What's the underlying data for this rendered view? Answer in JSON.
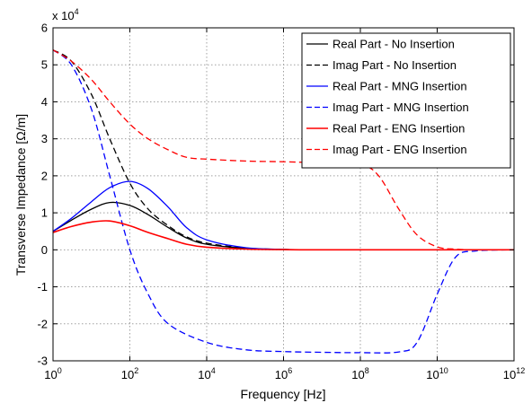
{
  "chart_data": {
    "type": "line",
    "xlabel": "Frequency [Hz]",
    "ylabel": "Transverse Impedance [Ω/m]",
    "x_scale": "log",
    "xlim": [
      1,
      1000000000000
    ],
    "ylim": [
      -30000,
      60000
    ],
    "y_multiplier_label": {
      "base": "x 10",
      "exp": "4"
    },
    "grid": true,
    "legend_position": "top-right",
    "x_ticks": [
      {
        "value": 1,
        "base": "10",
        "exp": "0"
      },
      {
        "value": 100,
        "base": "10",
        "exp": "2"
      },
      {
        "value": 10000,
        "base": "10",
        "exp": "4"
      },
      {
        "value": 1000000,
        "base": "10",
        "exp": "6"
      },
      {
        "value": 100000000,
        "base": "10",
        "exp": "8"
      },
      {
        "value": 10000000000,
        "base": "10",
        "exp": "10"
      },
      {
        "value": 1000000000000,
        "base": "10",
        "exp": "12"
      }
    ],
    "y_ticks": [
      {
        "value": 60000,
        "label": "6"
      },
      {
        "value": 50000,
        "label": "5"
      },
      {
        "value": 40000,
        "label": "4"
      },
      {
        "value": 30000,
        "label": "3"
      },
      {
        "value": 20000,
        "label": "2"
      },
      {
        "value": 10000,
        "label": "1"
      },
      {
        "value": 0,
        "label": "0"
      },
      {
        "value": -10000,
        "label": "-1"
      },
      {
        "value": -20000,
        "label": "-2"
      },
      {
        "value": -30000,
        "label": "-3"
      }
    ],
    "series": [
      {
        "name": "Real Part - No Insertion",
        "color": "#000000",
        "dash": "solid",
        "width": 1.3,
        "x": [
          1,
          3,
          10,
          30,
          100,
          300,
          1000,
          3000,
          10000,
          100000,
          1000000,
          10000000,
          1000000000000
        ],
        "y": [
          5000,
          8000,
          11000,
          12800,
          12000,
          9500,
          6000,
          3200,
          1500,
          400,
          100,
          0,
          0
        ]
      },
      {
        "name": "Imag Part - No Insertion",
        "color": "#000000",
        "dash": "dashed",
        "width": 1.3,
        "x": [
          1,
          3,
          10,
          30,
          100,
          300,
          1000,
          3000,
          10000,
          100000,
          1000000,
          10000000,
          1000000000000
        ],
        "y": [
          54000,
          51000,
          42000,
          30000,
          18000,
          11000,
          6500,
          3500,
          1800,
          500,
          100,
          0,
          0
        ]
      },
      {
        "name": "Real Part - MNG Insertion",
        "color": "#0000ff",
        "dash": "solid",
        "width": 1.3,
        "x": [
          1,
          3,
          10,
          30,
          100,
          300,
          1000,
          3000,
          10000,
          100000,
          1000000,
          10000000
        ],
        "y": [
          5000,
          8500,
          13000,
          16800,
          18500,
          16500,
          11500,
          6000,
          2700,
          600,
          100,
          0
        ]
      },
      {
        "name": "Imag Part - MNG Insertion",
        "color": "#0000ff",
        "dash": "dashed",
        "width": 1.3,
        "x": [
          1,
          3,
          10,
          30,
          100,
          300,
          1000,
          10000,
          100000,
          1000000,
          10000000,
          100000000,
          1000000000,
          3000000000,
          10000000000,
          30000000000,
          100000000000,
          1000000000000
        ],
        "y": [
          54000,
          50000,
          38000,
          20000,
          0,
          -12000,
          -20000,
          -25000,
          -27000,
          -27500,
          -27700,
          -27800,
          -27600,
          -25000,
          -12000,
          -2000,
          -300,
          0
        ]
      },
      {
        "name": "Real Part - ENG Insertion",
        "color": "#ff0000",
        "dash": "solid",
        "width": 1.6,
        "x": [
          1,
          3,
          10,
          30,
          100,
          300,
          1000,
          3000,
          10000,
          100000,
          1000000,
          10000000,
          1000000000000
        ],
        "y": [
          4700,
          6300,
          7500,
          7800,
          6500,
          4700,
          3000,
          1500,
          700,
          200,
          50,
          0,
          0
        ]
      },
      {
        "name": "Imag Part - ENG Insertion",
        "color": "#ff0000",
        "dash": "dashed",
        "width": 1.3,
        "x": [
          1,
          3,
          10,
          30,
          100,
          300,
          1000,
          3000,
          10000,
          100000,
          1000000,
          10000000,
          100000000,
          300000000,
          1000000000,
          3000000000,
          10000000000,
          30000000000,
          100000000000,
          1000000000000
        ],
        "y": [
          54000,
          51000,
          46000,
          40000,
          34000,
          30000,
          27000,
          25000,
          24500,
          24000,
          23800,
          23500,
          23000,
          20000,
          11000,
          4000,
          800,
          200,
          0,
          0
        ]
      }
    ]
  }
}
